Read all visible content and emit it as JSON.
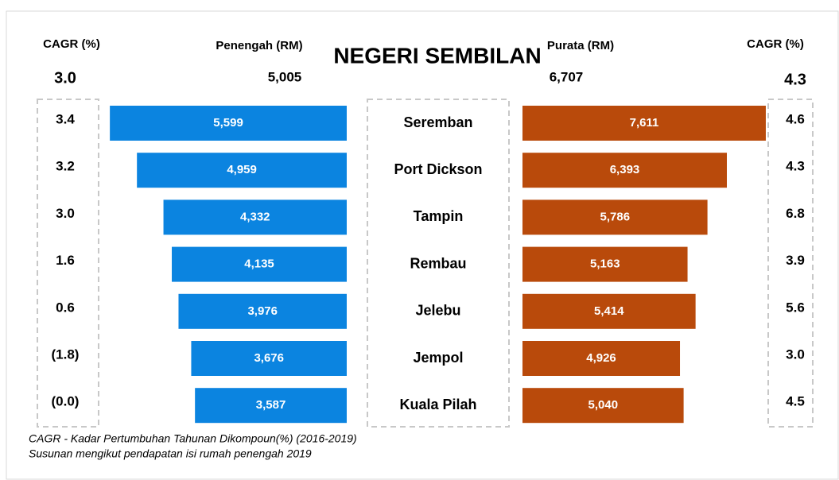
{
  "chart_data": {
    "type": "butterfly",
    "title": "NEGERI SEMBILAN",
    "categories": [
      "Seremban",
      "Port Dickson",
      "Tampin",
      "Rembau",
      "Jelebu",
      "Jempol",
      "Kuala Pilah"
    ],
    "series": [
      {
        "name": "Penengah (RM)",
        "color": "#0b84e0",
        "values": [
          5599,
          4959,
          4332,
          4135,
          3976,
          3676,
          3587
        ],
        "value_labels": [
          "5,599",
          "4,959",
          "4,332",
          "4,135",
          "3,976",
          "3,676",
          "3,587"
        ],
        "total": {
          "value": 5005,
          "label": "5,005"
        },
        "cagr_name": "CAGR (%)",
        "cagr": [
          3.4,
          3.2,
          3.0,
          1.6,
          0.6,
          -1.8,
          0
        ],
        "cagr_labels": [
          "3.4",
          "3.2",
          "3.0",
          "1.6",
          "0.6",
          "(1.8)",
          "(0.0)"
        ],
        "total_cagr": {
          "value": 3.0,
          "label": "3.0"
        }
      },
      {
        "name": "Purata (RM)",
        "color": "#b94a0b",
        "values": [
          7611,
          6393,
          5786,
          5163,
          5414,
          4926,
          5040
        ],
        "value_labels": [
          "7,611",
          "6,393",
          "5,786",
          "5,163",
          "5,414",
          "4,926",
          "5,040"
        ],
        "total": {
          "value": 6707,
          "label": "6,707"
        },
        "cagr_name": "CAGR (%)",
        "cagr": [
          4.6,
          4.3,
          6.8,
          3.9,
          5.6,
          3.0,
          4.5
        ],
        "cagr_labels": [
          "4.6",
          "4.3",
          "6.8",
          "3.9",
          "5.6",
          "3.0",
          "4.5"
        ],
        "total_cagr": {
          "value": 4.3,
          "label": "4.3"
        }
      }
    ],
    "notes": [
      "CAGR - Kadar Pertumbuhan Tahunan Dikompoun(%) (2016-2019)",
      "Susunan mengikut pendapatan isi rumah penengah 2019"
    ]
  }
}
